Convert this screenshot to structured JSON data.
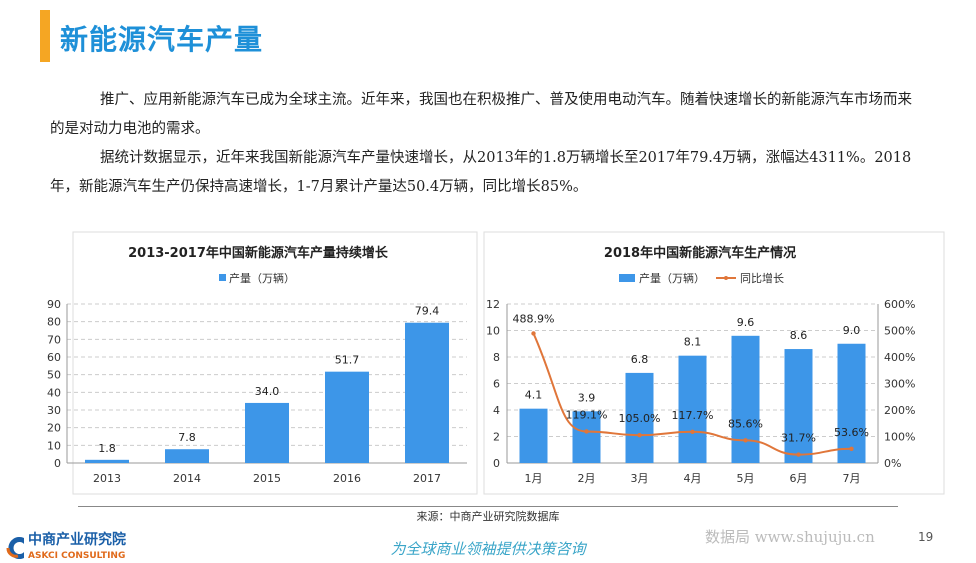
{
  "header": {
    "title": "新能源汽车产量"
  },
  "body": {
    "paragraphs": [
      "推广、应用新能源汽车已成为全球主流。近年来，我国也在积极推广、普及使用电动汽车。随着快速增长的新能源汽车市场而来的是对动力电池的需求。",
      "据统计数据显示，近年来我国新能源汽车产量快速增长，从2013年的1.8万辆增长至2017年79.4万辆，涨幅达4311%。2018年，新能源汽车生产仍保持高速增长，1-7月累计产量达50.4万辆，同比增长85%。"
    ]
  },
  "chart_data": [
    {
      "type": "bar",
      "title": "2013-2017年中国新能源汽车产量持续增长",
      "legend": "产量（万辆）",
      "legend_position": "top",
      "categories": [
        "2013",
        "2014",
        "2015",
        "2016",
        "2017"
      ],
      "values": [
        1.8,
        7.8,
        34.0,
        51.7,
        79.4
      ],
      "value_labels": [
        "1.8",
        "7.8",
        "34.0",
        "51.7",
        "79.4"
      ],
      "ylim": [
        0,
        90
      ],
      "yticks": [
        "0",
        "10",
        "20",
        "30",
        "40",
        "50",
        "60",
        "70",
        "80",
        "90"
      ],
      "grid": true,
      "bar_color": "#3d96e8"
    },
    {
      "type": "bar+line",
      "title": "2018年中国新能源汽车生产情况",
      "legend_position": "top",
      "categories": [
        "1月",
        "2月",
        "3月",
        "4月",
        "5月",
        "6月",
        "7月"
      ],
      "series": [
        {
          "name": "产量（万辆）",
          "type": "bar",
          "axis": "left",
          "values": [
            4.1,
            3.9,
            6.8,
            8.1,
            9.6,
            8.6,
            9.0
          ],
          "labels": [
            "4.1",
            "3.9",
            "6.8",
            "8.1",
            "9.6",
            "8.6",
            "9.0"
          ],
          "color": "#3d96e8"
        },
        {
          "name": "同比增长",
          "type": "line",
          "axis": "right",
          "values": [
            488.9,
            119.1,
            105.0,
            117.7,
            85.6,
            31.7,
            53.6
          ],
          "labels": [
            "488.9%",
            "119.1%",
            "105.0%",
            "117.7%",
            "85.6%",
            "31.7%",
            "53.6%"
          ],
          "color": "#e0763a"
        }
      ],
      "ylim": [
        0,
        12
      ],
      "yticks": [
        "0",
        "2",
        "4",
        "6",
        "8",
        "10",
        "12"
      ],
      "y2lim": [
        0,
        600
      ],
      "y2ticks": [
        "0%",
        "100%",
        "200%",
        "300%",
        "400%",
        "500%",
        "600%"
      ],
      "grid": true
    }
  ],
  "footer": {
    "source": "来源：中商产业研究院数据库",
    "slogan": "为全球商业领袖提供决策咨询",
    "logo_cn": "中商产业研究院",
    "logo_en": "ASKCI CONSULTING",
    "watermark": "数据局 www.shujuju.cn",
    "page": "19"
  }
}
